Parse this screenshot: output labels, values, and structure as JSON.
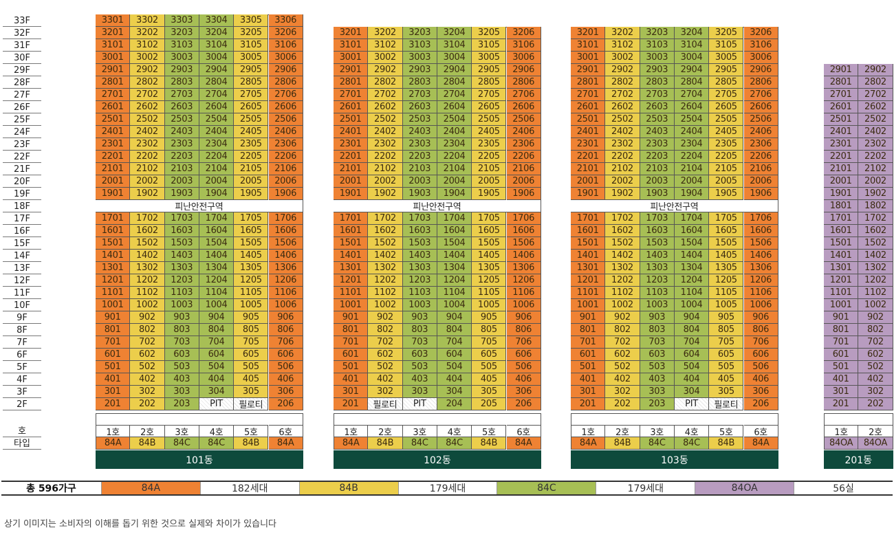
{
  "colors": {
    "84A": "#ef8233",
    "84B": "#ecce4b",
    "84C": "#a7bf55",
    "84OA": "#b89cc0",
    "building_bar": "#0e4a3c"
  },
  "floors": [
    "33F",
    "32F",
    "31F",
    "30F",
    "29F",
    "28F",
    "27F",
    "26F",
    "25F",
    "24F",
    "23F",
    "22F",
    "21F",
    "20F",
    "19F",
    "18F",
    "17F",
    "16F",
    "15F",
    "14F",
    "13F",
    "12F",
    "11F",
    "10F",
    "9F",
    "8F",
    "7F",
    "6F",
    "5F",
    "4F",
    "3F",
    "2F"
  ],
  "row_labels": {
    "unit": "호",
    "type": "타입"
  },
  "refuge_label": "피난안전구역",
  "buildings": [
    {
      "name": "101동",
      "top_floor": 33,
      "refuge_floor": 18,
      "unit_types": [
        "84A",
        "84B",
        "84C",
        "84C",
        "84B",
        "84A"
      ],
      "unit_labels": [
        "1호",
        "2호",
        "3호",
        "4호",
        "5호",
        "6호"
      ],
      "floor2": [
        "201",
        "202",
        "203",
        "PIT",
        "필로티",
        "206"
      ]
    },
    {
      "name": "102동",
      "top_floor": 32,
      "refuge_floor": 18,
      "unit_types": [
        "84A",
        "84B",
        "84C",
        "84C",
        "84B",
        "84A"
      ],
      "unit_labels": [
        "1호",
        "2호",
        "3호",
        "4호",
        "5호",
        "6호"
      ],
      "floor2": [
        "201",
        "필로티",
        "PIT",
        "204",
        "205",
        "206"
      ]
    },
    {
      "name": "103동",
      "top_floor": 32,
      "refuge_floor": 18,
      "unit_types": [
        "84A",
        "84B",
        "84C",
        "84C",
        "84B",
        "84A"
      ],
      "unit_labels": [
        "1호",
        "2호",
        "3호",
        "4호",
        "5호",
        "6호"
      ],
      "floor2": [
        "201",
        "202",
        "203",
        "PIT",
        "필로티",
        "206"
      ]
    },
    {
      "name": "201동",
      "top_floor": 29,
      "refuge_floor": null,
      "unit_types": [
        "84OA",
        "84OA"
      ],
      "unit_labels": [
        "1호",
        "2호"
      ],
      "floor2": [
        "201",
        "202"
      ]
    }
  ],
  "legend": {
    "total": "총 596가구",
    "items": [
      {
        "type": "84A",
        "count": "182세대"
      },
      {
        "type": "84B",
        "count": "179세대"
      },
      {
        "type": "84C",
        "count": "179세대"
      },
      {
        "type": "84OA",
        "count": "56실"
      }
    ]
  },
  "note": "상기 이미지는 소비자의 이해를 돕기 위한 것으로 실제와 차이가 있습니다"
}
